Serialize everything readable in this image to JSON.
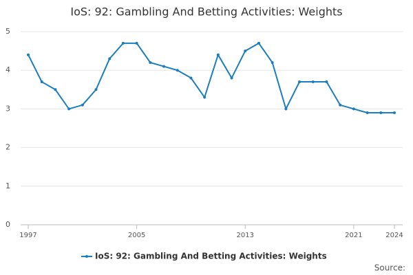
{
  "chart_data": {
    "type": "line",
    "title": "IoS: 92: Gambling And Betting Activities: Weights",
    "x": [
      1997,
      1998,
      1999,
      2000,
      2001,
      2002,
      2003,
      2004,
      2005,
      2006,
      2007,
      2008,
      2009,
      2010,
      2011,
      2012,
      2013,
      2014,
      2015,
      2016,
      2017,
      2018,
      2019,
      2020,
      2021,
      2022,
      2023,
      2024
    ],
    "series": [
      {
        "name": "IoS: 92: Gambling And Betting Activities: Weights",
        "color": "#1a7dc0",
        "values": [
          4.4,
          3.7,
          3.5,
          3.0,
          3.1,
          3.5,
          4.3,
          4.7,
          4.7,
          4.2,
          4.1,
          4.0,
          3.8,
          3.3,
          4.4,
          3.8,
          4.5,
          4.7,
          4.2,
          3.0,
          3.7,
          3.7,
          3.7,
          3.1,
          3.0,
          2.9,
          2.9,
          2.9
        ]
      }
    ],
    "xlim": [
      1997,
      2024
    ],
    "xticks": [
      1997,
      2005,
      2013,
      2021,
      2024
    ],
    "ylim": [
      0,
      5
    ],
    "yticks": [
      0,
      1,
      2,
      3,
      4,
      5
    ],
    "grid": true,
    "source": "Source:"
  }
}
